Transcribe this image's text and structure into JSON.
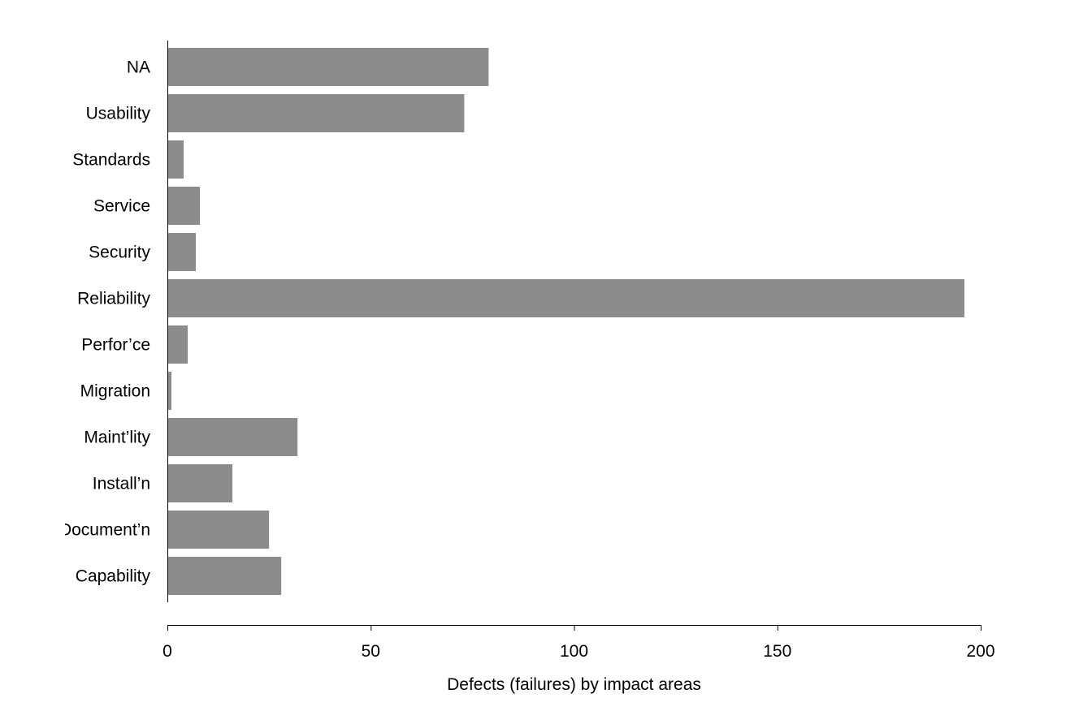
{
  "chart_data": {
    "type": "bar",
    "orientation": "horizontal",
    "categories": [
      "NA",
      "Usability",
      "Standards",
      "Service",
      "Security",
      "Reliability",
      "Perfor’ce",
      "Migration",
      "Maint’lity",
      "Install’n",
      "Document’n",
      "Capability"
    ],
    "values": [
      79,
      73,
      4,
      8,
      7,
      196,
      5,
      1,
      32,
      16,
      25,
      28
    ],
    "xlabel": "Defects (failures) by impact areas",
    "ylabel": "",
    "xlim": [
      0,
      200
    ],
    "xticks": [
      0,
      50,
      100,
      150,
      200
    ],
    "bar_color": "#8c8c8c",
    "axis_color": "#000000",
    "grid": false
  }
}
